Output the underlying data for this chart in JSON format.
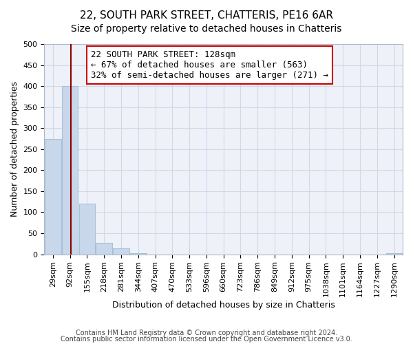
{
  "title": "22, SOUTH PARK STREET, CHATTERIS, PE16 6AR",
  "subtitle": "Size of property relative to detached houses in Chatteris",
  "xlabel": "Distribution of detached houses by size in Chatteris",
  "ylabel": "Number of detached properties",
  "bar_color": "#c8d8ea",
  "bar_edge_color": "#a8c0d8",
  "grid_color": "#d0d8e8",
  "background_color": "#eef2f8",
  "bin_labels": [
    "29sqm",
    "92sqm",
    "155sqm",
    "218sqm",
    "281sqm",
    "344sqm",
    "407sqm",
    "470sqm",
    "533sqm",
    "596sqm",
    "660sqm",
    "723sqm",
    "786sqm",
    "849sqm",
    "912sqm",
    "975sqm",
    "1038sqm",
    "1101sqm",
    "1164sqm",
    "1227sqm",
    "1290sqm"
  ],
  "bar_heights": [
    275,
    400,
    120,
    27,
    14,
    3,
    0,
    0,
    0,
    0,
    0,
    0,
    0,
    0,
    0,
    0,
    0,
    0,
    0,
    0,
    2
  ],
  "bin_edges_sqm": [
    29,
    92,
    155,
    218,
    281,
    344,
    407,
    470,
    533,
    596,
    660,
    723,
    786,
    849,
    912,
    975,
    1038,
    1101,
    1164,
    1227,
    1290
  ],
  "property_sqm": 128,
  "annotation_title": "22 SOUTH PARK STREET: 128sqm",
  "annotation_line1": "← 67% of detached houses are smaller (563)",
  "annotation_line2": "32% of semi-detached houses are larger (271) →",
  "annotation_box_color": "#ffffff",
  "annotation_box_edge": "#cc0000",
  "red_line_color": "#8b0000",
  "ylim": [
    0,
    500
  ],
  "yticks": [
    0,
    50,
    100,
    150,
    200,
    250,
    300,
    350,
    400,
    450,
    500
  ],
  "footer1": "Contains HM Land Registry data © Crown copyright and database right 2024.",
  "footer2": "Contains public sector information licensed under the Open Government Licence v3.0.",
  "title_fontsize": 11,
  "subtitle_fontsize": 10,
  "label_fontsize": 9,
  "tick_fontsize": 8,
  "annotation_fontsize": 9,
  "footer_fontsize": 7
}
